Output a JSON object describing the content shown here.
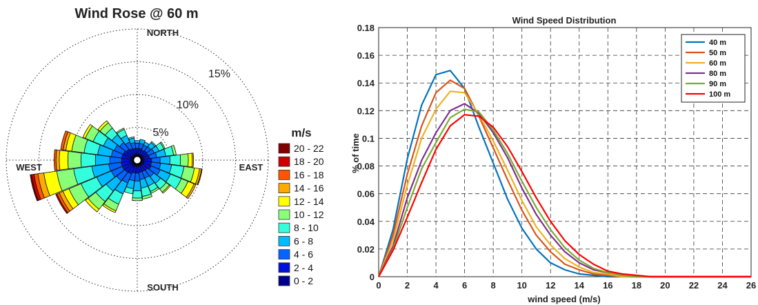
{
  "chart_data": [
    {
      "type": "wind-rose",
      "title": "Wind Rose @ 60 m",
      "directions": [
        "NORTH",
        "EAST",
        "SOUTH",
        "WEST"
      ],
      "radial_labels": [
        "5%",
        "10%",
        "15%"
      ],
      "radial_ticks": [
        5,
        10,
        15
      ],
      "rmax": 20,
      "legend_title": "m/s",
      "bins": [
        {
          "label": "20 - 22",
          "color": "#7f0000"
        },
        {
          "label": "18 - 20",
          "color": "#cc0000"
        },
        {
          "label": "16 - 18",
          "color": "#ff5500"
        },
        {
          "label": "14 - 16",
          "color": "#ffaa00"
        },
        {
          "label": "12 - 14",
          "color": "#ffff00"
        },
        {
          "label": "10 - 12",
          "color": "#88ff77"
        },
        {
          "label": "8 - 10",
          "color": "#33ffdd"
        },
        {
          "label": "6 - 8",
          "color": "#00bbff"
        },
        {
          "label": "4 - 6",
          "color": "#0066ff"
        },
        {
          "label": "2 - 4",
          "color": "#0011dd"
        },
        {
          "label": "0 - 2",
          "color": "#00008f"
        }
      ],
      "sectors": [
        {
          "dir": 0,
          "cum": [
            1.0,
            1.8,
            2.6,
            3.0
          ]
        },
        {
          "dir": 15,
          "cum": [
            1.0,
            1.8,
            2.6,
            3.2
          ]
        },
        {
          "dir": 30,
          "cum": [
            1.0,
            1.7,
            2.5,
            3.0
          ]
        },
        {
          "dir": 45,
          "cum": [
            1.0,
            1.8,
            2.6,
            3.4,
            3.6
          ]
        },
        {
          "dir": 60,
          "cum": [
            1.0,
            1.8,
            2.8,
            3.6,
            4.4,
            4.6
          ]
        },
        {
          "dir": 75,
          "cum": [
            1.0,
            1.9,
            3.0,
            4.4,
            5.6,
            6.0
          ]
        },
        {
          "dir": 90,
          "cum": [
            1.1,
            2.2,
            3.5,
            5.0,
            6.6,
            7.8,
            8.4,
            8.6
          ]
        },
        {
          "dir": 105,
          "cum": [
            1.1,
            2.2,
            3.6,
            5.3,
            7.2,
            8.8,
            9.6,
            9.9,
            10.0
          ]
        },
        {
          "dir": 120,
          "cum": [
            1.1,
            2.3,
            3.8,
            5.5,
            7.3,
            8.4,
            9.4,
            9.7
          ]
        },
        {
          "dir": 135,
          "cum": [
            1.0,
            2.0,
            3.2,
            4.5,
            5.6,
            6.2,
            6.4
          ]
        },
        {
          "dir": 150,
          "cum": [
            1.0,
            1.9,
            3.0,
            4.3,
            5.2,
            5.5
          ]
        },
        {
          "dir": 165,
          "cum": [
            1.0,
            1.9,
            3.0,
            4.3,
            5.6,
            6.0
          ]
        },
        {
          "dir": 180,
          "cum": [
            1.0,
            2.0,
            3.2,
            4.7,
            5.8,
            6.2
          ]
        },
        {
          "dir": 195,
          "cum": [
            1.0,
            2.0,
            3.2,
            4.4,
            5.2
          ]
        },
        {
          "dir": 210,
          "cum": [
            1.1,
            2.3,
            3.8,
            5.6,
            7.3,
            8.4,
            8.7
          ]
        },
        {
          "dir": 225,
          "cum": [
            1.1,
            2.4,
            4.0,
            6.0,
            8.0,
            9.5,
            10.0
          ]
        },
        {
          "dir": 240,
          "cum": [
            1.1,
            2.5,
            4.3,
            6.7,
            9.3,
            11.3,
            12.3,
            12.9,
            13.3,
            13.5
          ]
        },
        {
          "dir": 255,
          "cum": [
            1.1,
            2.5,
            4.4,
            7.0,
            9.8,
            12.4,
            14.4,
            15.3,
            15.9,
            16.3,
            16.5
          ]
        },
        {
          "dir": 270,
          "cum": [
            1.1,
            2.4,
            4.2,
            6.4,
            8.6,
            10.6,
            11.9,
            12.4,
            12.7
          ]
        },
        {
          "dir": 285,
          "cum": [
            1.1,
            2.4,
            4.0,
            6.1,
            8.2,
            10.1,
            11.0,
            11.4,
            11.8
          ]
        },
        {
          "dir": 300,
          "cum": [
            1.1,
            2.3,
            3.8,
            5.6,
            7.3,
            8.6,
            9.0
          ]
        },
        {
          "dir": 315,
          "cum": [
            1.0,
            2.1,
            3.4,
            4.9,
            6.2,
            7.2,
            7.6
          ]
        },
        {
          "dir": 330,
          "cum": [
            1.0,
            1.9,
            3.0,
            4.1,
            5.1,
            5.3
          ]
        },
        {
          "dir": 345,
          "cum": [
            1.0,
            1.8,
            2.7,
            3.4,
            3.6
          ]
        }
      ]
    },
    {
      "type": "line",
      "title": "Wind Speed Distribution",
      "xlabel": "wind speed (m/s)",
      "ylabel": "% of time",
      "xlim": [
        0,
        26
      ],
      "ylim": [
        0,
        0.18
      ],
      "xticks": [
        0,
        2,
        4,
        6,
        8,
        10,
        12,
        14,
        16,
        18,
        20,
        22,
        24,
        26
      ],
      "yticks": [
        0,
        0.02,
        0.04,
        0.06,
        0.08,
        0.1,
        0.12,
        0.14,
        0.16,
        0.18
      ],
      "ytick_labels": [
        "0",
        "0.02",
        "0.04",
        "0.06",
        "0.08",
        "0.1",
        "0.12",
        "0.14",
        "0.16",
        "0.18"
      ],
      "grid": true,
      "legend_position": "top-right",
      "x": [
        0,
        1,
        2,
        3,
        4,
        5,
        6,
        7,
        8,
        9,
        10,
        11,
        12,
        13,
        14,
        15,
        16,
        17,
        18,
        19,
        20,
        21,
        22,
        23,
        24,
        25,
        26
      ],
      "series": [
        {
          "name": "40 m",
          "color": "#0072bd",
          "values": [
            0,
            0.034,
            0.085,
            0.124,
            0.146,
            0.149,
            0.136,
            0.108,
            0.082,
            0.056,
            0.035,
            0.02,
            0.01,
            0.005,
            0.002,
            0.001,
            0,
            0,
            0,
            0,
            0,
            0,
            0,
            0,
            0,
            0,
            0
          ]
        },
        {
          "name": "50 m",
          "color": "#d95319",
          "values": [
            0,
            0.03,
            0.074,
            0.109,
            0.133,
            0.142,
            0.136,
            0.116,
            0.093,
            0.07,
            0.048,
            0.03,
            0.018,
            0.009,
            0.005,
            0.002,
            0.001,
            0,
            0,
            0,
            0,
            0,
            0,
            0,
            0,
            0,
            0
          ]
        },
        {
          "name": "60 m",
          "color": "#edb120",
          "values": [
            0,
            0.026,
            0.066,
            0.1,
            0.121,
            0.134,
            0.133,
            0.117,
            0.098,
            0.077,
            0.055,
            0.036,
            0.023,
            0.013,
            0.007,
            0.003,
            0.002,
            0,
            0,
            0,
            0,
            0,
            0,
            0,
            0,
            0,
            0
          ]
        },
        {
          "name": "80 m",
          "color": "#7e2f8e",
          "values": [
            0,
            0.022,
            0.057,
            0.084,
            0.104,
            0.12,
            0.125,
            0.118,
            0.104,
            0.086,
            0.064,
            0.045,
            0.03,
            0.018,
            0.01,
            0.005,
            0.003,
            0.001,
            0,
            0,
            0,
            0,
            0,
            0,
            0,
            0,
            0
          ]
        },
        {
          "name": "90 m",
          "color": "#77ac30",
          "values": [
            0,
            0.02,
            0.05,
            0.078,
            0.097,
            0.115,
            0.121,
            0.119,
            0.106,
            0.089,
            0.069,
            0.05,
            0.034,
            0.021,
            0.012,
            0.006,
            0.003,
            0.001,
            0,
            0,
            0,
            0,
            0,
            0,
            0,
            0,
            0
          ]
        },
        {
          "name": "100 m",
          "color": "#ff0000",
          "values": [
            0,
            0.019,
            0.043,
            0.068,
            0.092,
            0.109,
            0.117,
            0.116,
            0.108,
            0.094,
            0.076,
            0.057,
            0.04,
            0.026,
            0.016,
            0.009,
            0.004,
            0.002,
            0.001,
            0,
            0,
            0,
            0,
            0,
            0,
            0,
            0
          ]
        }
      ]
    }
  ]
}
